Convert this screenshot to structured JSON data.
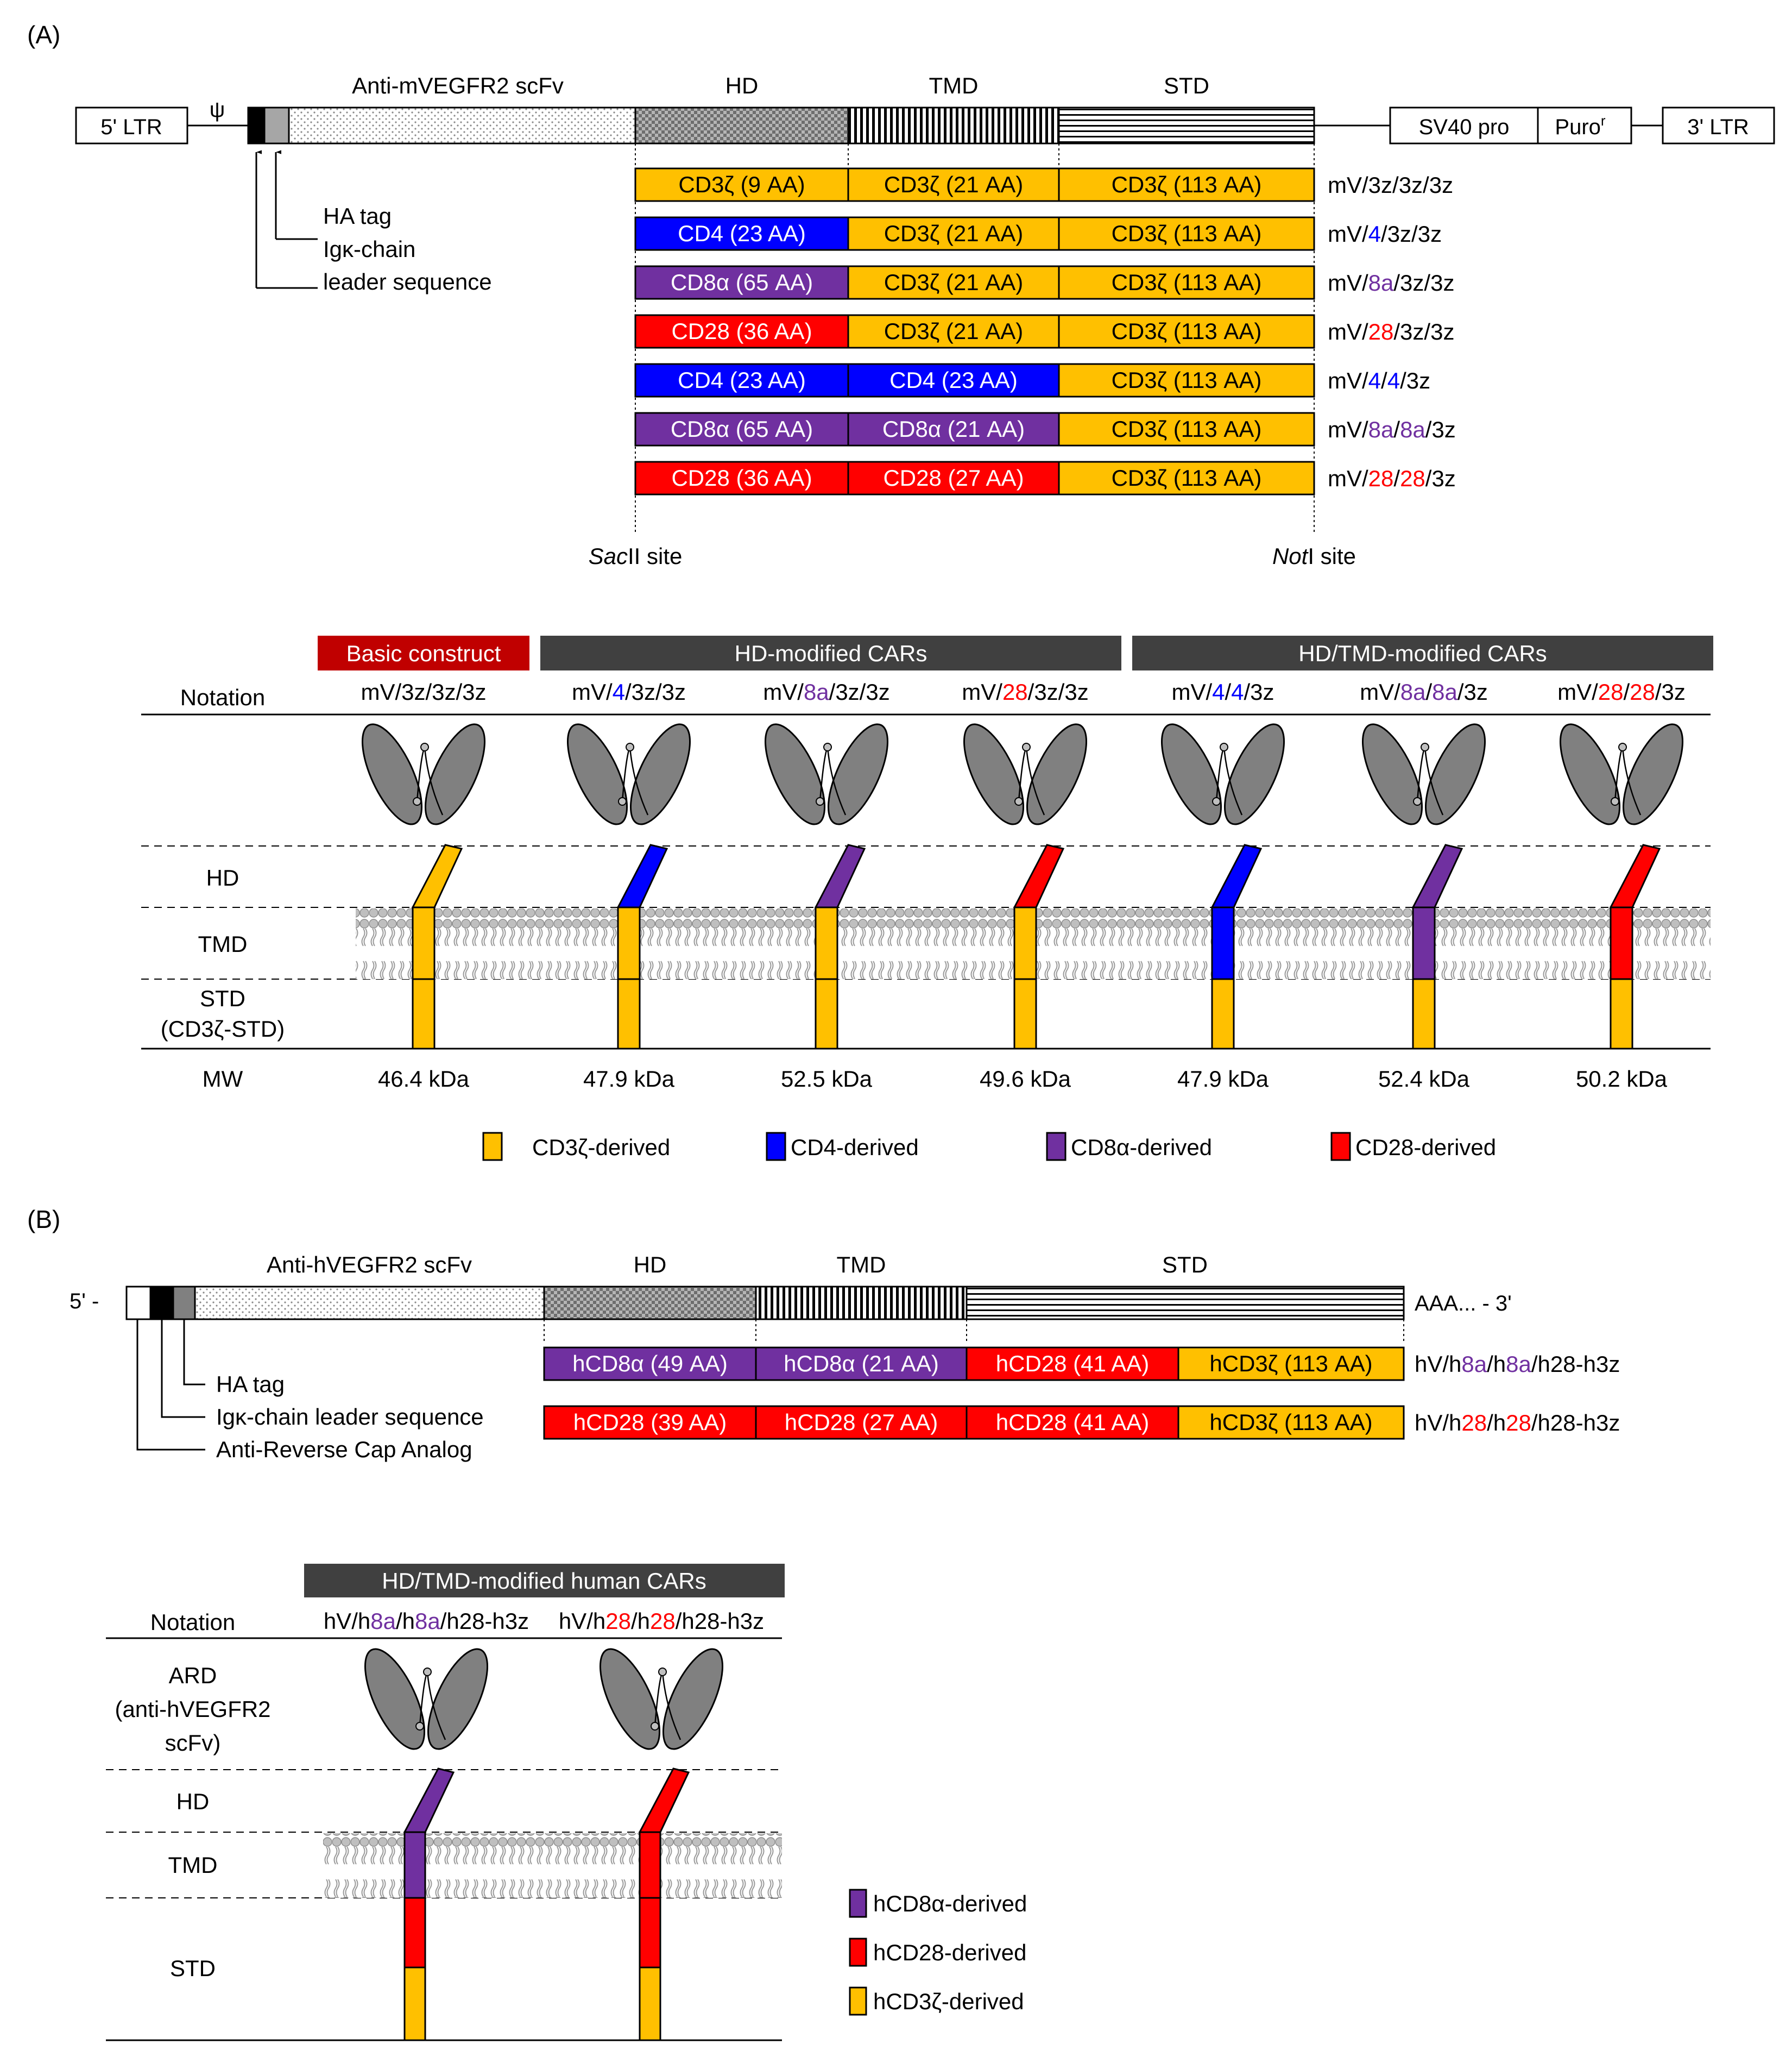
{
  "colors": {
    "cd3z": "#FFC000",
    "cd4": "#0000FF",
    "cd8a": "#7030A0",
    "cd28": "#FF0000",
    "header_dark": "#404040",
    "header_basic": "#C00000",
    "ellipse": "#808080",
    "membrane": "#BFBFBF"
  },
  "panelA": {
    "label": "(A)",
    "vector": {
      "ltr5": "5' LTR",
      "psi": "ψ",
      "scfv": "Anti-mVEGFR2 scFv",
      "hd": "HD",
      "tmd": "TMD",
      "std": "STD",
      "sv40": "SV40 pro",
      "puro": "Puro",
      "puro_sup": "r",
      "ltr3": "3' LTR",
      "ha_tag": "HA tag",
      "igk_line1": "Igκ-chain",
      "igk_line2": "leader sequence",
      "sacII_italic": "Sac",
      "sacII_rest": "II site",
      "notI_italic": "Not",
      "notI_rest": "I site"
    },
    "constructs": [
      {
        "notation": [
          {
            "t": "mV/3z/3z/3z",
            "c": "k"
          }
        ],
        "hd": {
          "label": "CD3ζ (9 AA)",
          "c": "cd3z"
        },
        "tmd": {
          "label": "CD3ζ (21 AA)",
          "c": "cd3z"
        },
        "std": {
          "label": "CD3ζ (113 AA)",
          "c": "cd3z"
        }
      },
      {
        "notation": [
          {
            "t": "mV/",
            "c": "k"
          },
          {
            "t": "4",
            "c": "cd4"
          },
          {
            "t": "/3z/3z",
            "c": "k"
          }
        ],
        "hd": {
          "label": "CD4 (23 AA)",
          "c": "cd4"
        },
        "tmd": {
          "label": "CD3ζ (21 AA)",
          "c": "cd3z"
        },
        "std": {
          "label": "CD3ζ (113 AA)",
          "c": "cd3z"
        }
      },
      {
        "notation": [
          {
            "t": "mV/",
            "c": "k"
          },
          {
            "t": "8a",
            "c": "cd8a"
          },
          {
            "t": "/3z/3z",
            "c": "k"
          }
        ],
        "hd": {
          "label": "CD8α (65 AA)",
          "c": "cd8a"
        },
        "tmd": {
          "label": "CD3ζ (21 AA)",
          "c": "cd3z"
        },
        "std": {
          "label": "CD3ζ (113 AA)",
          "c": "cd3z"
        }
      },
      {
        "notation": [
          {
            "t": "mV/",
            "c": "k"
          },
          {
            "t": "28",
            "c": "cd28"
          },
          {
            "t": "/3z/3z",
            "c": "k"
          }
        ],
        "hd": {
          "label": "CD28 (36 AA)",
          "c": "cd28"
        },
        "tmd": {
          "label": "CD3ζ (21 AA)",
          "c": "cd3z"
        },
        "std": {
          "label": "CD3ζ (113 AA)",
          "c": "cd3z"
        }
      },
      {
        "notation": [
          {
            "t": "mV/",
            "c": "k"
          },
          {
            "t": "4",
            "c": "cd4"
          },
          {
            "t": "/",
            "c": "k"
          },
          {
            "t": "4",
            "c": "cd4"
          },
          {
            "t": "/3z",
            "c": "k"
          }
        ],
        "hd": {
          "label": "CD4 (23 AA)",
          "c": "cd4"
        },
        "tmd": {
          "label": "CD4 (23 AA)",
          "c": "cd4"
        },
        "std": {
          "label": "CD3ζ (113 AA)",
          "c": "cd3z"
        }
      },
      {
        "notation": [
          {
            "t": "mV/",
            "c": "k"
          },
          {
            "t": "8a",
            "c": "cd8a"
          },
          {
            "t": "/",
            "c": "k"
          },
          {
            "t": "8a",
            "c": "cd8a"
          },
          {
            "t": "/3z",
            "c": "k"
          }
        ],
        "hd": {
          "label": "CD8α (65 AA)",
          "c": "cd8a"
        },
        "tmd": {
          "label": "CD8α (21 AA)",
          "c": "cd8a"
        },
        "std": {
          "label": "CD3ζ (113 AA)",
          "c": "cd3z"
        }
      },
      {
        "notation": [
          {
            "t": "mV/",
            "c": "k"
          },
          {
            "t": "28",
            "c": "cd28"
          },
          {
            "t": "/",
            "c": "k"
          },
          {
            "t": "28",
            "c": "cd28"
          },
          {
            "t": "/3z",
            "c": "k"
          }
        ],
        "hd": {
          "label": "CD28 (36 AA)",
          "c": "cd28"
        },
        "tmd": {
          "label": "CD28 (27 AA)",
          "c": "cd28"
        },
        "std": {
          "label": "CD3ζ (113 AA)",
          "c": "cd3z"
        }
      }
    ],
    "schematic": {
      "group_basic": "Basic construct",
      "group_hd": "HD-modified CARs",
      "group_hdtmd": "HD/TMD-modified CARs",
      "row_notation": "Notation",
      "row_hd": "HD",
      "row_tmd": "TMD",
      "row_std": "STD",
      "row_std2": "(CD3ζ-STD)",
      "row_mw": "MW",
      "cars": [
        {
          "hd": "cd3z",
          "tmd": "cd3z",
          "std": "cd3z",
          "mw": "46.4 kDa"
        },
        {
          "hd": "cd4",
          "tmd": "cd3z",
          "std": "cd3z",
          "mw": "47.9 kDa"
        },
        {
          "hd": "cd8a",
          "tmd": "cd3z",
          "std": "cd3z",
          "mw": "52.5 kDa"
        },
        {
          "hd": "cd28",
          "tmd": "cd3z",
          "std": "cd3z",
          "mw": "49.6 kDa"
        },
        {
          "hd": "cd4",
          "tmd": "cd4",
          "std": "cd3z",
          "mw": "47.9 kDa"
        },
        {
          "hd": "cd8a",
          "tmd": "cd8a",
          "std": "cd3z",
          "mw": "52.4 kDa"
        },
        {
          "hd": "cd28",
          "tmd": "cd28",
          "std": "cd3z",
          "mw": "50.2 kDa"
        }
      ]
    },
    "legend": [
      {
        "label": "CD3ζ-derived",
        "c": "cd3z"
      },
      {
        "label": "CD4-derived",
        "c": "cd4"
      },
      {
        "label": "CD8α-derived",
        "c": "cd8a"
      },
      {
        "label": "CD28-derived",
        "c": "cd28"
      }
    ]
  },
  "panelB": {
    "label": "(B)",
    "vector": {
      "five": "5' -",
      "scfv": "Anti-hVEGFR2 scFv",
      "hd": "HD",
      "tmd": "TMD",
      "std": "STD",
      "polyA": "AAA...  - 3'",
      "ha_tag": "HA tag",
      "igk": "Igκ-chain leader sequence",
      "arca": "Anti-Reverse Cap Analog"
    },
    "constructs": [
      {
        "notation": [
          {
            "t": "hV/h",
            "c": "k"
          },
          {
            "t": "8a",
            "c": "cd8a"
          },
          {
            "t": "/h",
            "c": "k"
          },
          {
            "t": "8a",
            "c": "cd8a"
          },
          {
            "t": "/h28-h3z",
            "c": "k"
          }
        ],
        "segs": [
          {
            "label": "hCD8α (49 AA)",
            "c": "cd8a"
          },
          {
            "label": "hCD8α (21 AA)",
            "c": "cd8a"
          },
          {
            "label": "hCD28 (41 AA)",
            "c": "cd28"
          },
          {
            "label": "hCD3ζ (113 AA)",
            "c": "cd3z"
          }
        ]
      },
      {
        "notation": [
          {
            "t": "hV/h",
            "c": "k"
          },
          {
            "t": "28",
            "c": "cd28"
          },
          {
            "t": "/h",
            "c": "k"
          },
          {
            "t": "28",
            "c": "cd28"
          },
          {
            "t": "/h28-h3z",
            "c": "k"
          }
        ],
        "segs": [
          {
            "label": "hCD28 (39 AA)",
            "c": "cd28"
          },
          {
            "label": "hCD28 (27 AA)",
            "c": "cd28"
          },
          {
            "label": "hCD28 (41 AA)",
            "c": "cd28"
          },
          {
            "label": "hCD3ζ (113 AA)",
            "c": "cd3z"
          }
        ]
      }
    ],
    "schematic": {
      "group": "HD/TMD-modified human CARs",
      "row_notation": "Notation",
      "row_ard1": "ARD",
      "row_ard2": "(anti-hVEGFR2",
      "row_ard3": "scFv)",
      "row_hd": "HD",
      "row_tmd": "TMD",
      "row_std": "STD",
      "cars": [
        {
          "hd": "cd8a",
          "tmd": "cd8a",
          "std1": "cd28",
          "std2": "cd3z"
        },
        {
          "hd": "cd28",
          "tmd": "cd28",
          "std1": "cd28",
          "std2": "cd3z"
        }
      ]
    },
    "legend": [
      {
        "label": "hCD8α-derived",
        "c": "cd8a"
      },
      {
        "label": "hCD28-derived",
        "c": "cd28"
      },
      {
        "label": "hCD3ζ-derived",
        "c": "cd3z"
      }
    ]
  }
}
